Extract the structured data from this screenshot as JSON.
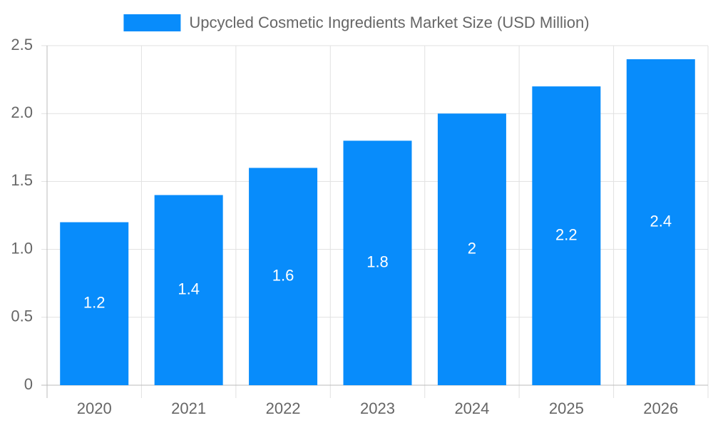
{
  "chart_data": {
    "type": "bar",
    "categories": [
      "2020",
      "2021",
      "2022",
      "2023",
      "2024",
      "2025",
      "2026"
    ],
    "series": [
      {
        "name": "Upcycled Cosmetic Ingredients Market Size (USD Million)",
        "color": "#088cfb",
        "values": [
          1.2,
          1.4,
          1.6,
          1.8,
          2,
          2.2,
          2.4
        ]
      }
    ],
    "ylim": [
      0,
      2.5
    ],
    "yticks": [
      0,
      0.5,
      {
        "value": 1,
        "label": "1.0"
      },
      1.5,
      {
        "value": 2,
        "label": "2.0"
      },
      2.5
    ],
    "grid": true,
    "legend": "top"
  }
}
